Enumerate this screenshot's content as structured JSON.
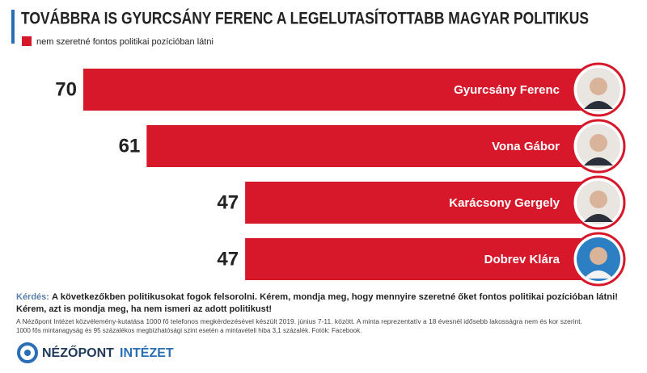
{
  "chart_data": {
    "type": "bar",
    "orientation": "horizontal",
    "title": "TOVÁBBRA IS GYURCSÁNY FERENC A LEGELUTASÍTOTTABB MAGYAR POLITIKUS",
    "series_name": "nem szeretné fontos politikai pozícióban látni",
    "color": "#d7182a",
    "categories": [
      "Gyurcsány Ferenc",
      "Vona Gábor",
      "Karácsony Gergely",
      "Dobrev Klára"
    ],
    "values": [
      70,
      61,
      47,
      47
    ]
  },
  "footer": {
    "question_label": "Kérdés:",
    "question_lines": [
      "A következőkben politikusokat fogok felsorolni. Kérem, mondja meg, hogy mennyire szeretné őket fontos politikai pozícióban látni!",
      "Kérem, azt is mondja meg, ha nem ismeri az adott politikust!"
    ],
    "notes": [
      "A Nézőpont Intézet közvélemény-kutatása 1000 fő telefonos megkérdezésével készült 2019. június 7-11. között. A minta reprezentatív a 18 évesnél idősebb lakosságra nem és kor szerint.",
      "1000 fős mintanagyság és 95 százalékos megbízhatósági szint esetén a mintavételi hiba 3,1 százalék. Fotók: Facebook."
    ],
    "logo_main": "NÉZŐPONT",
    "logo_sub": "INTÉZET"
  }
}
